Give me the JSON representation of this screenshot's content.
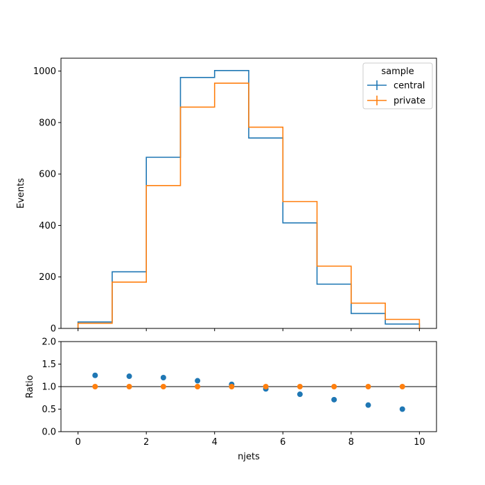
{
  "chart_data": [
    {
      "type": "line",
      "panel": "main",
      "ylabel": "Events",
      "xlabel": "",
      "xlim": [
        -0.5,
        10.5
      ],
      "ylim": [
        0,
        1050
      ],
      "bin_edges": [
        0,
        1,
        2,
        3,
        4,
        5,
        6,
        7,
        8,
        9,
        10
      ],
      "xticks": [
        0,
        2,
        4,
        6,
        8,
        10
      ],
      "yticks": [
        0,
        200,
        400,
        600,
        800,
        1000
      ],
      "ytick_labels": [
        "0",
        "200",
        "400",
        "600",
        "800",
        "1000"
      ],
      "legend": {
        "title": "sample",
        "location": "top-right"
      },
      "series": [
        {
          "name": "central",
          "color": "#1f77b4",
          "values": [
            25,
            220,
            665,
            975,
            1002,
            740,
            410,
            172,
            58,
            17
          ]
        },
        {
          "name": "private",
          "color": "#ff7f0e",
          "values": [
            20,
            180,
            555,
            860,
            953,
            782,
            493,
            242,
            98,
            35
          ]
        }
      ]
    },
    {
      "type": "scatter",
      "panel": "ratio",
      "ylabel": "Ratio",
      "xlabel": "njets",
      "xlim": [
        -0.5,
        10.5
      ],
      "ylim": [
        0,
        2
      ],
      "reference_line": 1.0,
      "x": [
        0.5,
        1.5,
        2.5,
        3.5,
        4.5,
        5.5,
        6.5,
        7.5,
        8.5,
        9.5
      ],
      "xticks": [
        0,
        2,
        4,
        6,
        8,
        10
      ],
      "xtick_labels": [
        "0",
        "2",
        "4",
        "6",
        "8",
        "10"
      ],
      "yticks": [
        0,
        0.5,
        1,
        1.5,
        2
      ],
      "ytick_labels": [
        "0.0",
        "0.5",
        "1.0",
        "1.5",
        "2.0"
      ],
      "series": [
        {
          "name": "central",
          "color": "#1f77b4",
          "values": [
            1.25,
            1.23,
            1.2,
            1.13,
            1.05,
            0.95,
            0.83,
            0.71,
            0.59,
            0.5
          ]
        },
        {
          "name": "private",
          "color": "#ff7f0e",
          "values": [
            1.0,
            1.0,
            1.0,
            1.0,
            1.0,
            1.0,
            1.0,
            1.0,
            1.0,
            1.0
          ]
        }
      ]
    }
  ]
}
